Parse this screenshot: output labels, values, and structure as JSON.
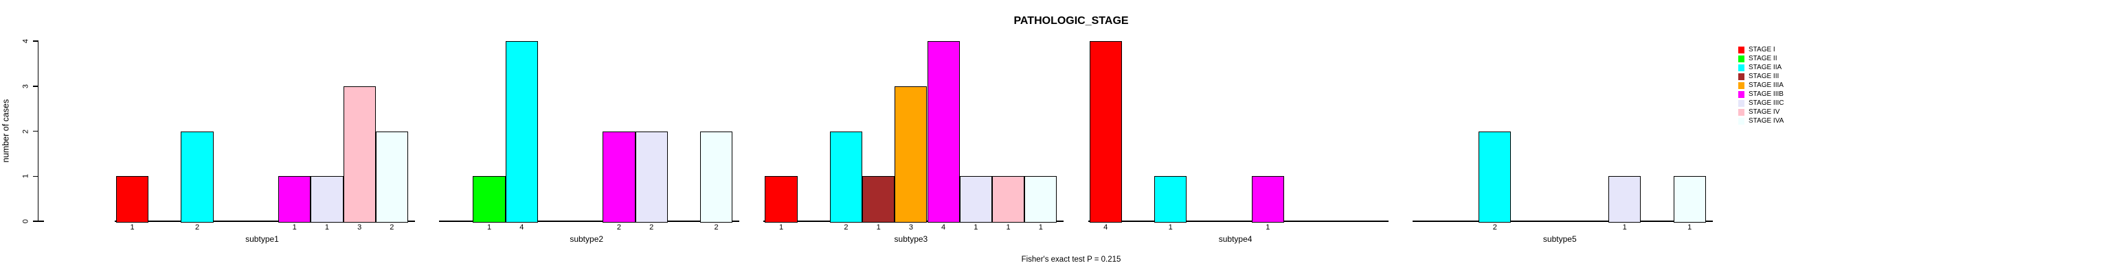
{
  "title": "PATHOLOGIC_STAGE",
  "annotation": "Fisher's exact test P = 0.215",
  "y_axis": {
    "label": "number of cases",
    "tick_labels": [
      "0",
      "1",
      "2",
      "3",
      "4"
    ]
  },
  "legend": {
    "position": "top-right"
  },
  "chart_data": {
    "type": "bar",
    "title": "PATHOLOGIC_STAGE",
    "ylabel": "number of cases",
    "xlabel": "",
    "ylim": [
      0,
      4
    ],
    "yticks": [
      0,
      1,
      2,
      3,
      4
    ],
    "grid": false,
    "legend_position": "top-right",
    "annotation": "Fisher's exact test P = 0.215",
    "stages": [
      "STAGE I",
      "STAGE II",
      "STAGE IIA",
      "STAGE III",
      "STAGE IIIA",
      "STAGE IIIB",
      "STAGE IIIC",
      "STAGE IV",
      "STAGE IVA"
    ],
    "stage_colors": [
      "#FF0000",
      "#00FF00",
      "#00FFFF",
      "#A52A2A",
      "#FFA500",
      "#FF00FF",
      "#E6E6FA",
      "#FFC0CB",
      "#F0FFFF"
    ],
    "bar_label_rule": "count value shown under each nonzero bar",
    "groups": [
      {
        "label": "subtype1",
        "counts": [
          1,
          0,
          2,
          0,
          0,
          1,
          1,
          3,
          2
        ]
      },
      {
        "label": "subtype2",
        "counts": [
          0,
          1,
          4,
          0,
          0,
          2,
          2,
          0,
          2
        ]
      },
      {
        "label": "subtype3",
        "counts": [
          1,
          0,
          2,
          1,
          3,
          4,
          1,
          1,
          1
        ]
      },
      {
        "label": "subtype4",
        "counts": [
          4,
          0,
          1,
          0,
          0,
          1,
          0,
          0,
          0
        ]
      },
      {
        "label": "subtype5",
        "counts": [
          0,
          0,
          2,
          0,
          0,
          0,
          1,
          0,
          1
        ]
      }
    ]
  }
}
